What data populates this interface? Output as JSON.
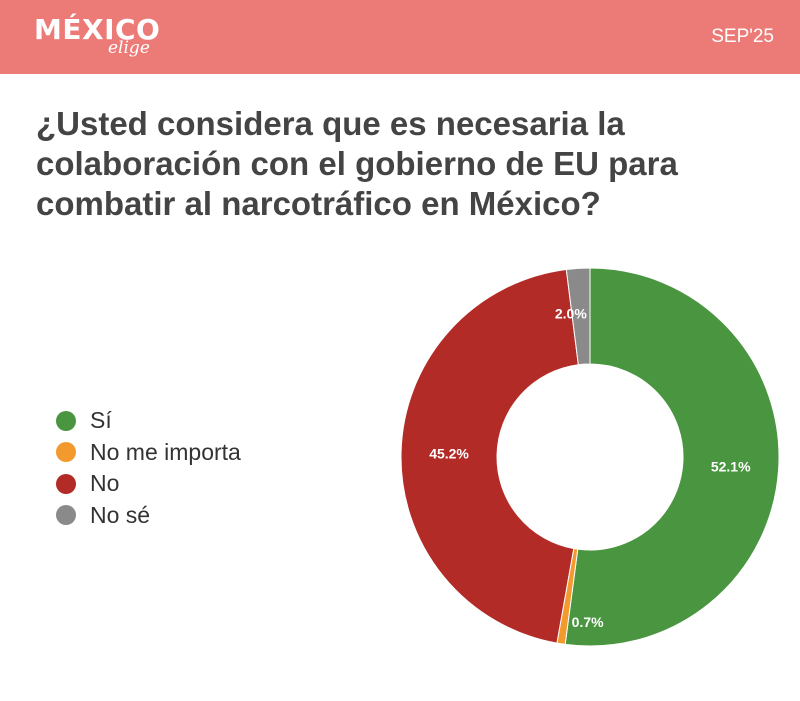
{
  "header": {
    "brand_main": "MÉXICO",
    "brand_script": "elige",
    "date": "SEP'25"
  },
  "chart_data": {
    "type": "pie",
    "donut": true,
    "title": "¿Usted considera que es necesaria la colaboración con el gobierno de EU para combatir al narcotráfico en México?",
    "legend_position": "left",
    "categories": [
      "Sí",
      "No me importa",
      "No",
      "No sé"
    ],
    "values": [
      52.1,
      0.7,
      45.2,
      2.0
    ],
    "labels": [
      "52.1%",
      "0.7%",
      "45.2%",
      "2.0%"
    ],
    "colors": [
      "#4a9640",
      "#f39a2e",
      "#b22b27",
      "#8a8a8a"
    ]
  }
}
